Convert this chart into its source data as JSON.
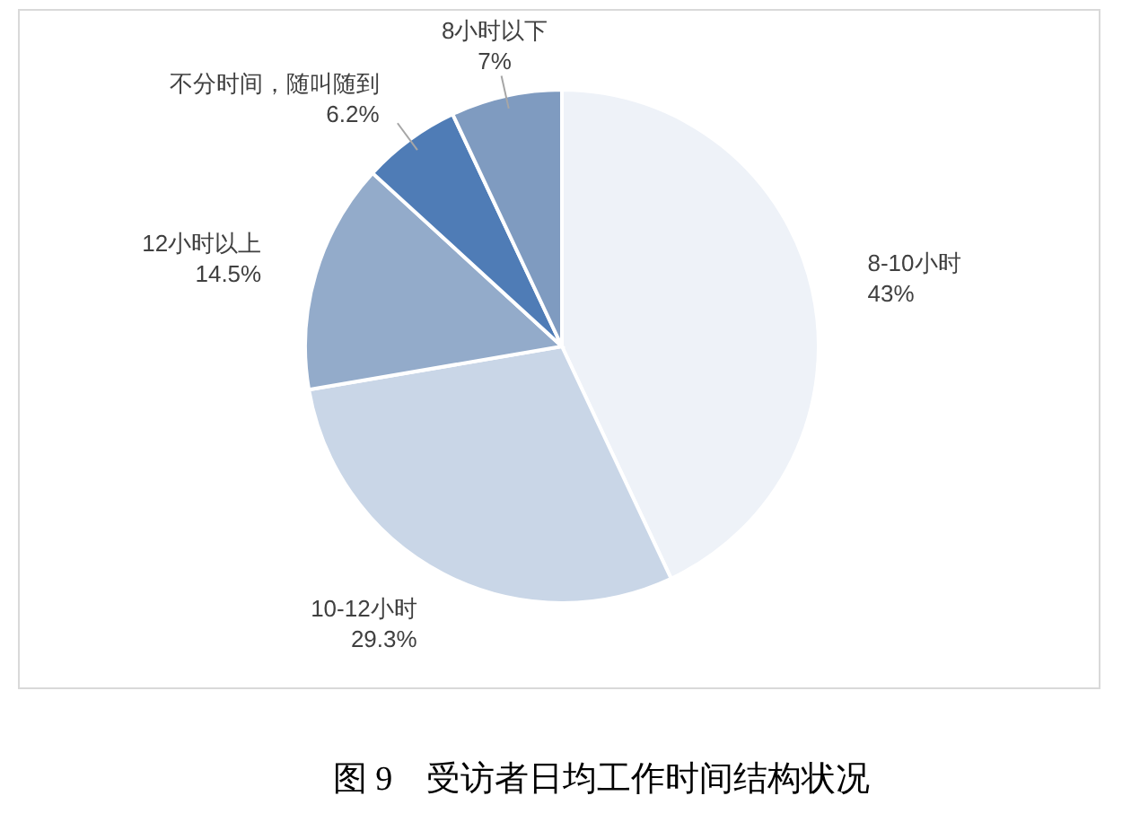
{
  "chart_data": {
    "type": "pie",
    "categories": [
      "8-10小时",
      "10-12小时",
      "12小时以上",
      "不分时间，随叫随到",
      "8小时以下"
    ],
    "values": [
      43,
      29.3,
      14.5,
      6.2,
      7
    ],
    "value_labels": [
      "43%",
      "29.3%",
      "14.5%",
      "6.2%",
      "7%"
    ],
    "colors": [
      "#eef2f8",
      "#c9d6e7",
      "#93abca",
      "#4f7cb6",
      "#7f9bc0"
    ],
    "annotations": [
      "图 9　受访者日均工作时间结构状况"
    ]
  }
}
